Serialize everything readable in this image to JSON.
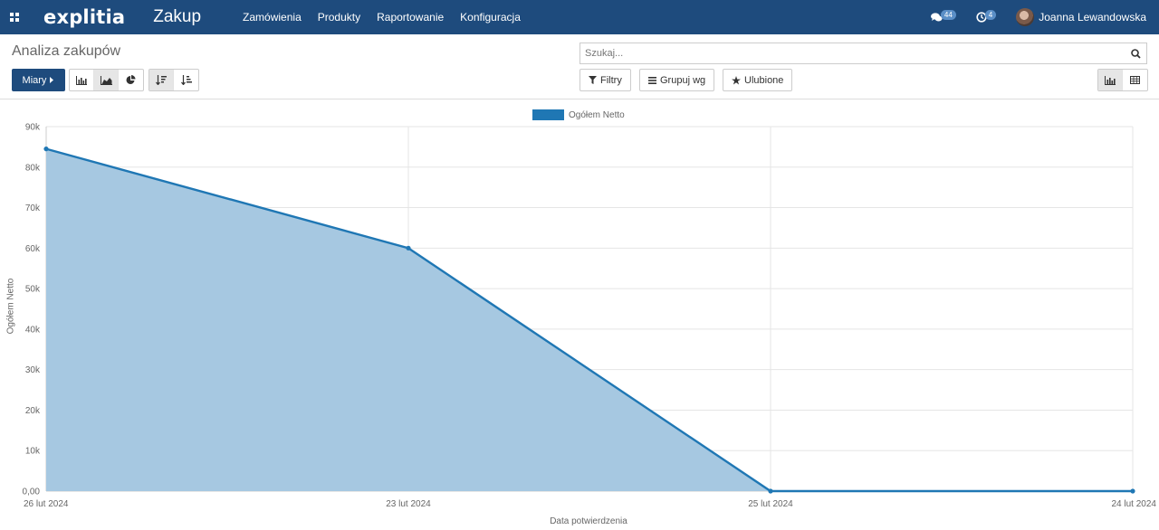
{
  "navbar": {
    "brand": "explitia",
    "app_title": "Zakup",
    "menu": [
      "Zamówienia",
      "Produkty",
      "Raportowanie",
      "Konfiguracja"
    ],
    "messages_count": "44",
    "activities_count": "4",
    "user_name": "Joanna Lewandowska"
  },
  "control": {
    "breadcrumb": "Analiza zakupów",
    "measures_label": "Miary",
    "search_placeholder": "Szukaj...",
    "filters_label": "Filtry",
    "groupby_label": "Grupuj wg",
    "favorites_label": "Ulubione"
  },
  "chart_data": {
    "type": "area",
    "legend": [
      "Ogółem Netto"
    ],
    "xlabel": "Data potwierdzenia",
    "ylabel": "Ogółem Netto",
    "categories": [
      "26 lut 2024",
      "23 lut 2024",
      "25 lut 2024",
      "24 lut 2024"
    ],
    "series": [
      {
        "name": "Ogółem Netto",
        "values": [
          84500,
          60000,
          0,
          0
        ]
      }
    ],
    "ylim": [
      0,
      90000
    ],
    "yticks": [
      0,
      10000,
      20000,
      30000,
      40000,
      50000,
      60000,
      70000,
      80000,
      90000
    ],
    "ytick_labels": [
      "0,00",
      "10k",
      "20k",
      "30k",
      "40k",
      "50k",
      "60k",
      "70k",
      "80k",
      "90k"
    ],
    "grid": true,
    "legend_position": "top-center",
    "color": "#1f77b4",
    "fill_color": "#a6c8e1"
  }
}
